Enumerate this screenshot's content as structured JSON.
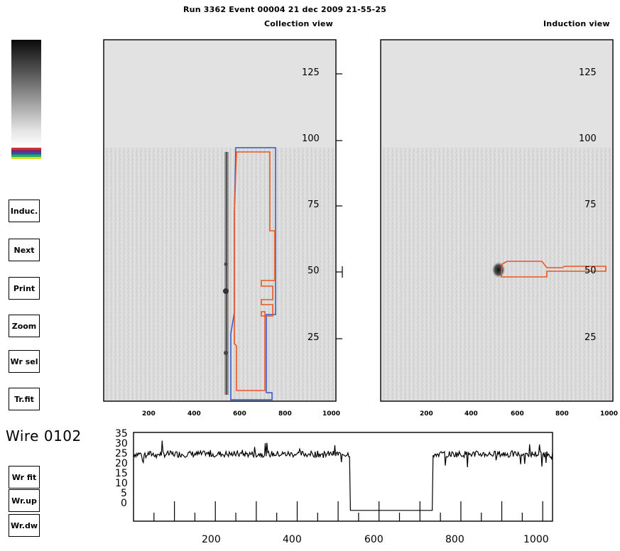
{
  "header": {
    "title": "Run 3362  Event 00004   21 dec 2009  21-55-25",
    "collection_label": "Collection view",
    "induction_label": "Induction view"
  },
  "colors": {
    "frame": "#000000",
    "empty_region": "#e2e2e2",
    "track_box_orange": "#ee5522",
    "track_box_blue": "#3355cc",
    "scale_stripes": [
      "#cc3333",
      "#882266",
      "#2255aa",
      "#22aa66",
      "#dddd22"
    ]
  },
  "buttons": [
    {
      "label": "Induc."
    },
    {
      "label": "Next"
    },
    {
      "label": "Print"
    },
    {
      "label": "Zoom"
    },
    {
      "label": "Wr sel"
    },
    {
      "label": "Tr.fit"
    },
    {
      "label": "Wr fit"
    },
    {
      "label": "Wr.up"
    },
    {
      "label": "Wr.dw"
    }
  ],
  "collection_view": {
    "y_ticks": [
      "125",
      "100",
      "75",
      "50",
      "25"
    ],
    "x_ticks": [
      "200",
      "400",
      "600",
      "800",
      "1000"
    ]
  },
  "induction_view": {
    "y_ticks": [
      "125",
      "100",
      "75",
      "50",
      "25"
    ],
    "x_ticks": [
      "200",
      "400",
      "600",
      "800",
      "1000"
    ]
  },
  "wire_panel": {
    "label": "Wire 0102",
    "y_ticks": [
      "35",
      "30",
      "25",
      "20",
      "15",
      "10",
      "5",
      "0"
    ],
    "x_ticks": [
      "200",
      "400",
      "600",
      "800",
      "1000"
    ],
    "baseline_level": 26,
    "gap_start": 530,
    "gap_end": 730,
    "x_range": [
      0,
      1024
    ],
    "y_range": [
      -5,
      36
    ]
  }
}
